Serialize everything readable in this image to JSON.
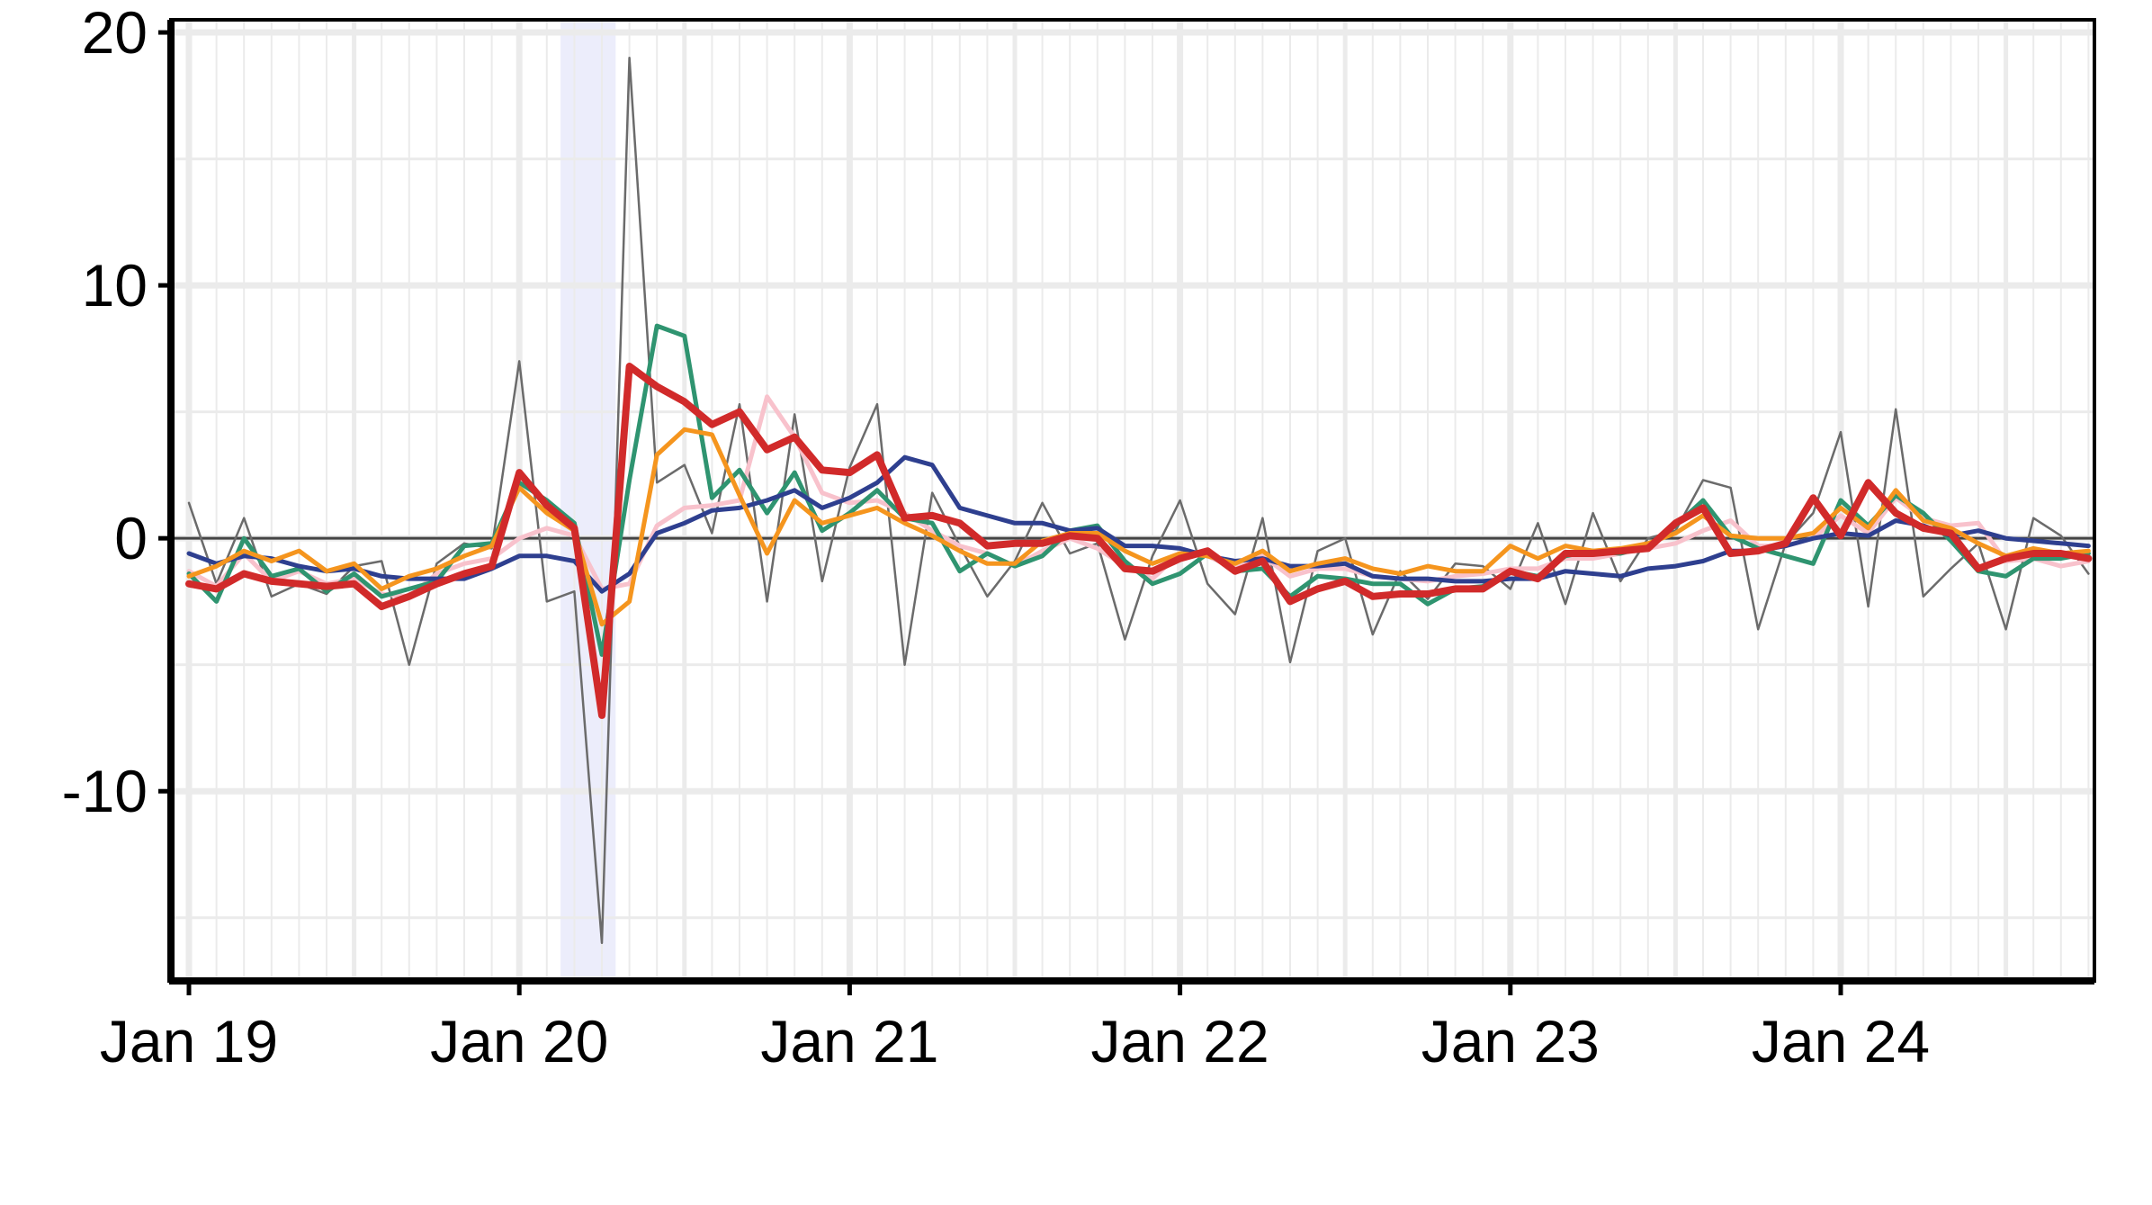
{
  "chart_data": {
    "type": "line",
    "title": "",
    "xlabel": "",
    "ylabel": "",
    "x_start": "2019-01",
    "x_ticks": [
      "Jan 19",
      "Jan 20",
      "Jan 21",
      "Jan 22",
      "Jan 23",
      "Jan 24"
    ],
    "y_ticks": [
      "-10",
      "0",
      "10",
      "20"
    ],
    "ylim": [
      -17.5,
      20.5
    ],
    "grid": true,
    "legend": "none",
    "shaded_period": {
      "from": "2020-03",
      "to": "2020-04"
    },
    "colors": {
      "grid": "#ebebeb",
      "shading": "#ecedfb",
      "zero_line": "#444444",
      "axis": "#000000"
    },
    "series": [
      {
        "color": "#6b6b6b",
        "width": 2.5,
        "values": [
          1.4,
          -1.8,
          0.8,
          -2.3,
          -1.8,
          -2.2,
          -1.1,
          -0.9,
          -5.0,
          -1.0,
          -0.2,
          -0.4,
          7.0,
          -2.5,
          -2.1,
          -16.0,
          19.0,
          2.2,
          2.9,
          0.2,
          5.3,
          -2.5,
          4.9,
          -1.7,
          2.8,
          5.3,
          -5.0,
          1.8,
          -0.3,
          -2.3,
          -0.9,
          1.4,
          -0.6,
          -0.2,
          -4.0,
          -0.7,
          1.5,
          -1.8,
          -3.0,
          0.8,
          -4.9,
          -0.5,
          0.0,
          -3.8,
          -1.3,
          -2.4,
          -1.0,
          -1.1,
          -2.0,
          0.6,
          -2.6,
          1.0,
          -1.7,
          0.0,
          0.3,
          2.3,
          2.0,
          -3.6,
          -0.2,
          1.0,
          4.2,
          -2.7,
          5.1,
          -2.3,
          -1.2,
          -0.2,
          -3.6,
          0.8,
          0.1,
          -1.4
        ]
      },
      {
        "color": "#f8c2cc",
        "width": 5,
        "values": [
          -1.3,
          -1.9,
          -0.6,
          -1.7,
          -1.3,
          -1.8,
          -1.6,
          -2.2,
          -2.3,
          -1.4,
          -1.0,
          -0.8,
          0.0,
          0.4,
          0.1,
          -2.0,
          -1.8,
          0.5,
          1.2,
          1.3,
          1.5,
          5.6,
          4.0,
          1.8,
          1.4,
          1.5,
          1.0,
          0.3,
          -0.3,
          -0.6,
          -1.1,
          -0.5,
          0.0,
          -0.4,
          -1.1,
          -1.6,
          -0.6,
          -0.7,
          -1.2,
          -0.7,
          -1.5,
          -1.2,
          -1.2,
          -1.5,
          -1.6,
          -1.7,
          -1.5,
          -1.4,
          -1.2,
          -1.2,
          -0.8,
          -0.8,
          -0.6,
          -0.4,
          -0.2,
          0.3,
          0.7,
          -0.3,
          -0.3,
          0.0,
          0.9,
          0.2,
          1.6,
          0.8,
          0.5,
          0.6,
          -0.9,
          -0.8,
          -1.1,
          -0.9
        ]
      },
      {
        "color": "#2f9470",
        "width": 5,
        "values": [
          -1.4,
          -2.5,
          0.0,
          -1.5,
          -1.2,
          -2.1,
          -1.4,
          -2.3,
          -2.0,
          -1.7,
          -0.3,
          -0.2,
          2.2,
          1.5,
          0.6,
          -4.6,
          2.3,
          8.4,
          8.0,
          1.6,
          2.7,
          1.0,
          2.6,
          0.3,
          1.0,
          1.9,
          0.8,
          0.6,
          -1.3,
          -0.6,
          -1.1,
          -0.7,
          0.3,
          0.5,
          -0.9,
          -1.8,
          -1.4,
          -0.6,
          -1.3,
          -1.2,
          -2.3,
          -1.5,
          -1.6,
          -1.8,
          -1.8,
          -2.6,
          -2.0,
          -1.9,
          -1.3,
          -1.5,
          -0.7,
          -0.5,
          -0.6,
          -0.3,
          0.5,
          1.5,
          0.1,
          -0.4,
          -0.7,
          -1.0,
          1.5,
          0.5,
          1.7,
          1.0,
          -0.1,
          -1.3,
          -1.5,
          -0.8,
          -0.8,
          -0.6
        ]
      },
      {
        "color": "#2e3f8f",
        "width": 5,
        "values": [
          -0.6,
          -1.0,
          -0.7,
          -0.8,
          -1.1,
          -1.3,
          -1.2,
          -1.5,
          -1.6,
          -1.6,
          -1.6,
          -1.2,
          -0.7,
          -0.7,
          -0.9,
          -2.1,
          -1.4,
          0.2,
          0.6,
          1.1,
          1.2,
          1.5,
          1.9,
          1.2,
          1.6,
          2.2,
          3.2,
          2.9,
          1.2,
          0.9,
          0.6,
          0.6,
          0.3,
          0.4,
          -0.3,
          -0.3,
          -0.4,
          -0.7,
          -0.9,
          -0.8,
          -1.1,
          -1.1,
          -1.0,
          -1.5,
          -1.6,
          -1.6,
          -1.7,
          -1.7,
          -1.6,
          -1.6,
          -1.3,
          -1.4,
          -1.5,
          -1.2,
          -1.1,
          -0.9,
          -0.5,
          -0.5,
          -0.3,
          0.0,
          0.2,
          0.1,
          0.7,
          0.5,
          0.1,
          0.3,
          0.0,
          -0.1,
          -0.2,
          -0.3
        ]
      },
      {
        "color": "#f5951e",
        "width": 5,
        "values": [
          -1.5,
          -1.1,
          -0.5,
          -0.9,
          -0.5,
          -1.3,
          -1.0,
          -2.0,
          -1.5,
          -1.2,
          -0.7,
          -0.3,
          2.0,
          1.0,
          0.3,
          -3.4,
          -2.5,
          3.3,
          4.3,
          4.1,
          1.7,
          -0.6,
          1.5,
          0.6,
          0.9,
          1.2,
          0.6,
          0.1,
          -0.5,
          -1.0,
          -1.0,
          -0.1,
          0.2,
          0.2,
          -0.5,
          -1.0,
          -0.6,
          -0.7,
          -1.0,
          -0.5,
          -1.3,
          -1.0,
          -0.8,
          -1.2,
          -1.4,
          -1.1,
          -1.3,
          -1.3,
          -0.3,
          -0.8,
          -0.3,
          -0.5,
          -0.4,
          -0.2,
          0.2,
          0.9,
          0.1,
          0.0,
          0.0,
          0.2,
          1.2,
          0.4,
          1.9,
          0.7,
          0.4,
          -0.2,
          -0.7,
          -0.4,
          -0.6,
          -0.5
        ]
      },
      {
        "color": "#d12a2a",
        "width": 8,
        "values": [
          -1.8,
          -2.0,
          -1.4,
          -1.7,
          -1.8,
          -1.9,
          -1.8,
          -2.7,
          -2.3,
          -1.8,
          -1.4,
          -1.1,
          2.6,
          1.3,
          0.4,
          -7.0,
          6.8,
          6.0,
          5.4,
          4.5,
          5.0,
          3.5,
          4.0,
          2.7,
          2.6,
          3.3,
          0.8,
          0.9,
          0.6,
          -0.3,
          -0.2,
          -0.2,
          0.1,
          0.0,
          -1.2,
          -1.3,
          -0.8,
          -0.5,
          -1.3,
          -0.9,
          -2.5,
          -2.0,
          -1.7,
          -2.3,
          -2.2,
          -2.2,
          -2.0,
          -2.0,
          -1.3,
          -1.6,
          -0.6,
          -0.6,
          -0.5,
          -0.4,
          0.6,
          1.2,
          -0.6,
          -0.5,
          -0.2,
          1.6,
          0.1,
          2.2,
          1.0,
          0.4,
          0.2,
          -1.2,
          -0.8,
          -0.6,
          -0.6,
          -0.8
        ]
      }
    ]
  }
}
